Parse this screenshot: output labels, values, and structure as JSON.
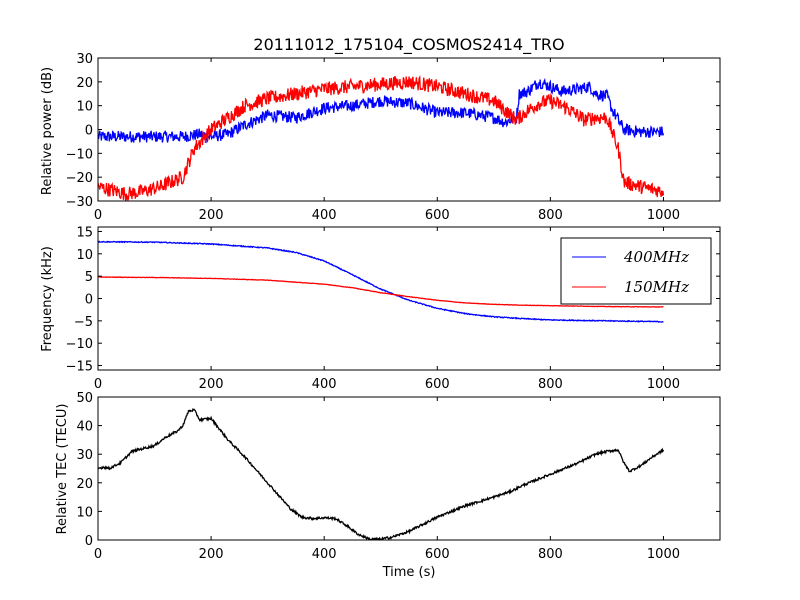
{
  "chart_data": {
    "title": "20111012_175104_COSMOS2414_TRO",
    "colors": {
      "series_400": "#0000ff",
      "series_150": "#ff0000",
      "tec": "#000000"
    },
    "xlabel": "Time (s)",
    "xlim": [
      0,
      1100
    ],
    "x_ticks": [
      "0",
      "200",
      "400",
      "600",
      "800",
      "1000"
    ],
    "panels": [
      {
        "type": "line",
        "ylabel": "Relative power (dB)",
        "ylim": [
          -30,
          30
        ],
        "y_ticks": [
          "−30",
          "−20",
          "−10",
          "0",
          "10",
          "20",
          "30"
        ],
        "series": [
          {
            "color": "#0000ff",
            "noise": 2.5,
            "points": [
              [
                0,
                -3
              ],
              [
                50,
                -3
              ],
              [
                100,
                -3
              ],
              [
                150,
                -3
              ],
              [
                180,
                -2
              ],
              [
                200,
                -3
              ],
              [
                230,
                -2
              ],
              [
                260,
                2
              ],
              [
                300,
                6
              ],
              [
                350,
                5
              ],
              [
                400,
                9
              ],
              [
                450,
                10
              ],
              [
                500,
                12
              ],
              [
                550,
                11
              ],
              [
                600,
                7
              ],
              [
                650,
                7
              ],
              [
                700,
                5
              ],
              [
                720,
                3
              ],
              [
                740,
                5
              ],
              [
                745,
                15
              ],
              [
                760,
                16
              ],
              [
                780,
                20
              ],
              [
                800,
                18
              ],
              [
                820,
                16
              ],
              [
                850,
                17
              ],
              [
                870,
                18
              ],
              [
                880,
                15
              ],
              [
                900,
                14
              ],
              [
                910,
                8
              ],
              [
                930,
                0
              ],
              [
                960,
                -1
              ],
              [
                1000,
                -1
              ]
            ]
          },
          {
            "color": "#ff0000",
            "noise": 3.0,
            "points": [
              [
                0,
                -24
              ],
              [
                50,
                -27
              ],
              [
                80,
                -26
              ],
              [
                110,
                -24
              ],
              [
                150,
                -20
              ],
              [
                170,
                -8
              ],
              [
                200,
                0
              ],
              [
                230,
                5
              ],
              [
                260,
                10
              ],
              [
                300,
                13
              ],
              [
                350,
                15
              ],
              [
                400,
                17
              ],
              [
                450,
                18
              ],
              [
                500,
                19
              ],
              [
                550,
                20
              ],
              [
                600,
                18
              ],
              [
                650,
                15
              ],
              [
                700,
                12
              ],
              [
                720,
                8
              ],
              [
                740,
                4
              ],
              [
                760,
                8
              ],
              [
                780,
                11
              ],
              [
                800,
                12
              ],
              [
                830,
                9
              ],
              [
                860,
                4
              ],
              [
                880,
                5
              ],
              [
                900,
                5
              ],
              [
                920,
                -8
              ],
              [
                930,
                -22
              ],
              [
                960,
                -24
              ],
              [
                1000,
                -26
              ]
            ]
          }
        ]
      },
      {
        "type": "line",
        "ylabel": "Frequency (kHz)",
        "ylim": [
          -16,
          16
        ],
        "y_ticks": [
          "−15",
          "−10",
          "−5",
          "0",
          "5",
          "10",
          "15"
        ],
        "legend_position": "top-right",
        "series": [
          {
            "name": "400MHz",
            "color": "#0000ff",
            "noise": 0.1,
            "points": [
              [
                0,
                12.7
              ],
              [
                100,
                12.6
              ],
              [
                200,
                12.2
              ],
              [
                300,
                11.3
              ],
              [
                350,
                10.3
              ],
              [
                400,
                8.4
              ],
              [
                450,
                5.3
              ],
              [
                500,
                2.1
              ],
              [
                550,
                -0.4
              ],
              [
                600,
                -2.2
              ],
              [
                650,
                -3.4
              ],
              [
                700,
                -4.1
              ],
              [
                750,
                -4.5
              ],
              [
                800,
                -4.8
              ],
              [
                900,
                -5.0
              ],
              [
                1000,
                -5.2
              ]
            ]
          },
          {
            "name": "150MHz",
            "color": "#ff0000",
            "noise": 0.05,
            "points": [
              [
                0,
                4.8
              ],
              [
                100,
                4.7
              ],
              [
                200,
                4.5
              ],
              [
                300,
                4.1
              ],
              [
                400,
                3.2
              ],
              [
                450,
                2.4
              ],
              [
                500,
                1.3
              ],
              [
                550,
                0.4
              ],
              [
                600,
                -0.4
              ],
              [
                650,
                -1.0
              ],
              [
                700,
                -1.3
              ],
              [
                750,
                -1.5
              ],
              [
                800,
                -1.6
              ],
              [
                900,
                -1.8
              ],
              [
                1000,
                -1.9
              ]
            ]
          }
        ]
      },
      {
        "type": "line",
        "ylabel": "Relative TEC (TECU)",
        "ylim": [
          0,
          50
        ],
        "y_ticks": [
          "0",
          "10",
          "20",
          "30",
          "40",
          "50"
        ],
        "series": [
          {
            "color": "#000000",
            "noise": 0.4,
            "points": [
              [
                0,
                25
              ],
              [
                10,
                25.5
              ],
              [
                20,
                25
              ],
              [
                40,
                27
              ],
              [
                60,
                31
              ],
              [
                80,
                32
              ],
              [
                100,
                33
              ],
              [
                120,
                36
              ],
              [
                140,
                38
              ],
              [
                150,
                40
              ],
              [
                160,
                45
              ],
              [
                170,
                45.5
              ],
              [
                180,
                42
              ],
              [
                200,
                42.5
              ],
              [
                230,
                35
              ],
              [
                260,
                29
              ],
              [
                300,
                20
              ],
              [
                340,
                11
              ],
              [
                360,
                8
              ],
              [
                380,
                7.5
              ],
              [
                400,
                7.8
              ],
              [
                420,
                7.5
              ],
              [
                440,
                5
              ],
              [
                460,
                2
              ],
              [
                480,
                0.3
              ],
              [
                500,
                0.3
              ],
              [
                520,
                1
              ],
              [
                550,
                3
              ],
              [
                600,
                8
              ],
              [
                650,
                12
              ],
              [
                700,
                15
              ],
              [
                730,
                17
              ],
              [
                750,
                19
              ],
              [
                800,
                23
              ],
              [
                850,
                27
              ],
              [
                880,
                30
              ],
              [
                900,
                31
              ],
              [
                920,
                31.5
              ],
              [
                930,
                27
              ],
              [
                940,
                24
              ],
              [
                960,
                26
              ],
              [
                980,
                29
              ],
              [
                1000,
                31.5
              ]
            ]
          }
        ]
      }
    ]
  }
}
